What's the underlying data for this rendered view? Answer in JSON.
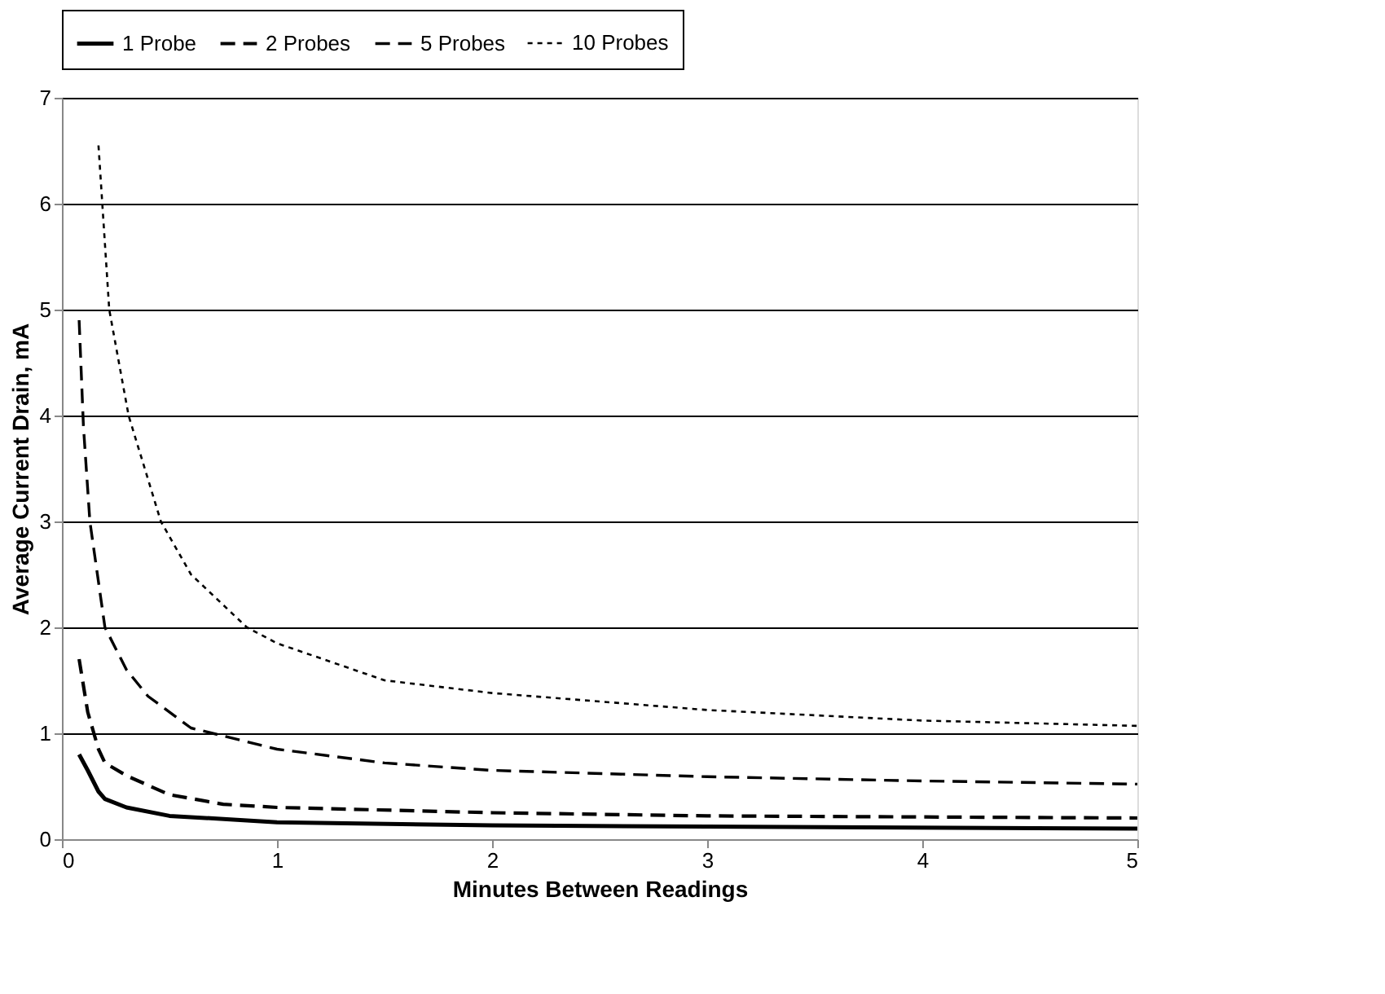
{
  "chart_data": {
    "type": "line",
    "xlabel": "Minutes Between Readings",
    "ylabel": "Average Current Drain, mA",
    "xlim": [
      0,
      5
    ],
    "xticks": [
      0,
      1,
      2,
      3,
      4,
      5
    ],
    "ylim": [
      0,
      7
    ],
    "yticks": [
      0,
      1,
      2,
      3,
      4,
      5,
      6,
      7
    ],
    "grid": "y",
    "legend": "top",
    "marker": "none",
    "series": [
      {
        "name": "1 Probe",
        "color": "#000000",
        "line_style": "solid",
        "x": [
          0.08,
          0.12,
          0.17,
          0.2,
          0.3,
          0.5,
          1,
          2,
          3,
          5
        ],
        "values": [
          0.8,
          0.65,
          0.45,
          0.38,
          0.3,
          0.22,
          0.16,
          0.13,
          0.12,
          0.1
        ]
      },
      {
        "name": "2 Probes",
        "color": "#000000",
        "line_style": "dashed",
        "x": [
          0.08,
          0.12,
          0.17,
          0.2,
          0.3,
          0.5,
          0.75,
          1,
          2,
          3,
          4,
          5
        ],
        "values": [
          1.7,
          1.2,
          0.85,
          0.72,
          0.6,
          0.42,
          0.33,
          0.3,
          0.25,
          0.22,
          0.21,
          0.2
        ]
      },
      {
        "name": "5 Probes",
        "color": "#000000",
        "line_style": "dashed",
        "x": [
          0.08,
          0.1,
          0.13,
          0.2,
          0.3,
          0.4,
          0.6,
          1,
          1.5,
          2,
          3,
          4,
          5
        ],
        "values": [
          4.9,
          3.9,
          3.0,
          2.0,
          1.6,
          1.35,
          1.05,
          0.85,
          0.72,
          0.65,
          0.59,
          0.55,
          0.52
        ]
      },
      {
        "name": "10 Probes",
        "color": "#000000",
        "line_style": "dotted",
        "x": [
          0.17,
          0.22,
          0.31,
          0.46,
          0.6,
          0.86,
          1,
          1.5,
          2,
          3,
          4,
          5
        ],
        "values": [
          6.55,
          5.0,
          4.0,
          3.0,
          2.5,
          2.0,
          1.85,
          1.5,
          1.38,
          1.22,
          1.12,
          1.07
        ]
      }
    ]
  }
}
